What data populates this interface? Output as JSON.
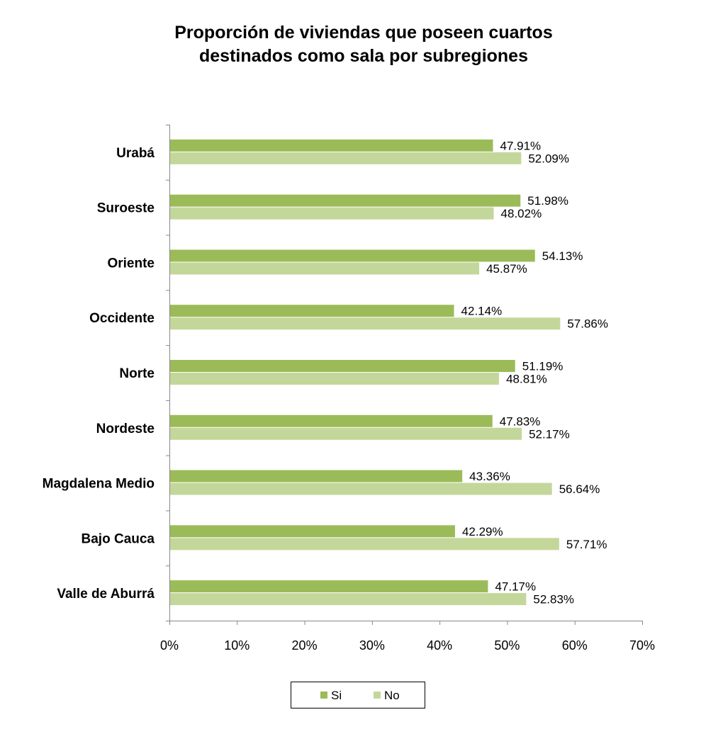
{
  "chart_data": {
    "type": "bar",
    "orientation": "horizontal",
    "title_lines": [
      "Proporción de viviendas que poseen cuartos",
      "destinados como sala por subregiones"
    ],
    "categories": [
      "Urabá",
      "Suroeste",
      "Oriente",
      "Occidente",
      "Norte",
      "Nordeste",
      "Magdalena Medio",
      "Bajo Cauca",
      "Valle de Aburrá"
    ],
    "series": [
      {
        "name": "Si",
        "color": "#9BBB59",
        "values": [
          47.91,
          51.98,
          54.13,
          42.14,
          51.19,
          47.83,
          43.36,
          42.29,
          47.17
        ],
        "labels": [
          "47.91%",
          "51.98%",
          "54.13%",
          "42.14%",
          "51.19%",
          "47.83%",
          "43.36%",
          "42.29%",
          "47.17%"
        ]
      },
      {
        "name": "No",
        "color": "#C4D79B",
        "values": [
          52.09,
          48.02,
          45.87,
          57.86,
          48.81,
          52.17,
          56.64,
          57.71,
          52.83
        ],
        "labels": [
          "52.09%",
          "48.02%",
          "45.87%",
          "57.86%",
          "48.81%",
          "52.17%",
          "56.64%",
          "57.71%",
          "52.83%"
        ]
      }
    ],
    "xlim": [
      0,
      70
    ],
    "xticks": [
      0,
      10,
      20,
      30,
      40,
      50,
      60,
      70
    ],
    "xtick_labels": [
      "0%",
      "10%",
      "20%",
      "30%",
      "40%",
      "50%",
      "60%",
      "70%"
    ],
    "grid": false,
    "legend_position": "bottom"
  }
}
